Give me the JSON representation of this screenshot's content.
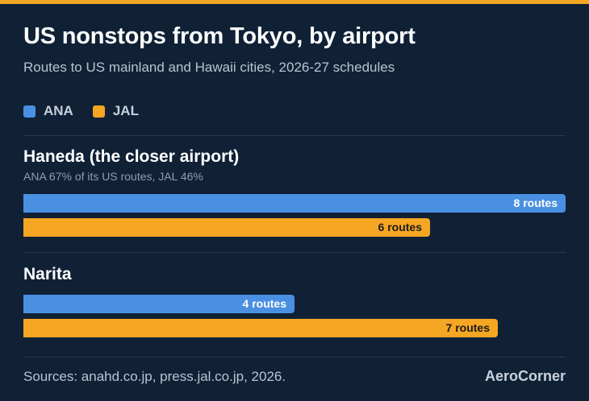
{
  "title": "US nonstops from Tokyo, by airport",
  "subtitle": "Routes to US mainland and Hawaii cities, 2026-27 schedules",
  "legend": [
    {
      "name": "ANA",
      "color": "#4a90e2"
    },
    {
      "name": "JAL",
      "color": "#f5a623"
    }
  ],
  "chart_data": {
    "type": "bar",
    "orientation": "horizontal",
    "title": "US nonstops from Tokyo, by airport",
    "subtitle": "Routes to US mainland and Hawaii cities, 2026-27 schedules",
    "categories": [
      "Haneda (the closer airport)",
      "Narita"
    ],
    "notes": [
      "ANA 67% of its US routes, JAL 46%",
      ""
    ],
    "series": [
      {
        "name": "ANA",
        "color": "#4a90e2",
        "values": [
          8,
          4
        ],
        "labels": [
          "8 routes",
          "4 routes"
        ]
      },
      {
        "name": "JAL",
        "color": "#f5a623",
        "values": [
          6,
          7
        ],
        "labels": [
          "6 routes",
          "7 routes"
        ]
      }
    ],
    "xlim": [
      0,
      8
    ],
    "grid": false,
    "legend_position": "top-left"
  },
  "footer": {
    "source": "Sources: anahd.co.jp, press.jal.co.jp, 2026.",
    "brand": "AeroCorner"
  }
}
